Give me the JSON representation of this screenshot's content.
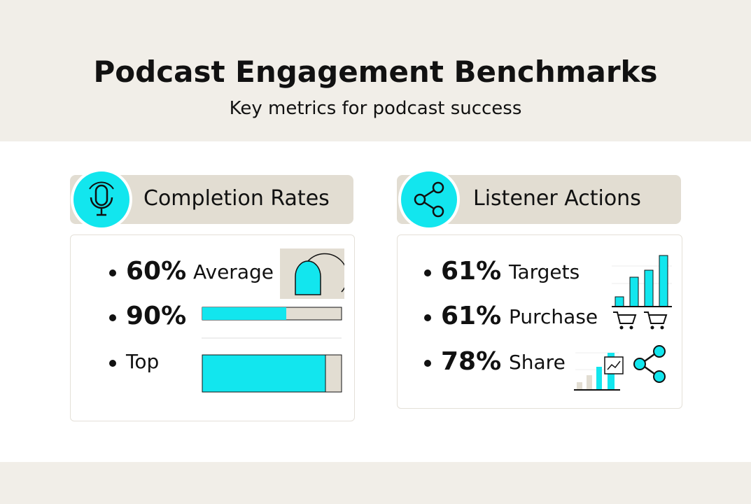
{
  "header": {
    "title": "Podcast Engagement Benchmarks",
    "subtitle": "Key metrics for podcast success"
  },
  "cards": [
    {
      "title": "Completion Rates",
      "items": [
        {
          "value": "60%",
          "label": "Average"
        },
        {
          "value": "90%"
        },
        {
          "label": "Top"
        }
      ]
    },
    {
      "title": "Listener Actions",
      "items": [
        {
          "value": "61%",
          "label": "Targets"
        },
        {
          "value": "61%",
          "label": "Purchase"
        },
        {
          "value": "78%",
          "label": "Share"
        }
      ]
    }
  ]
}
